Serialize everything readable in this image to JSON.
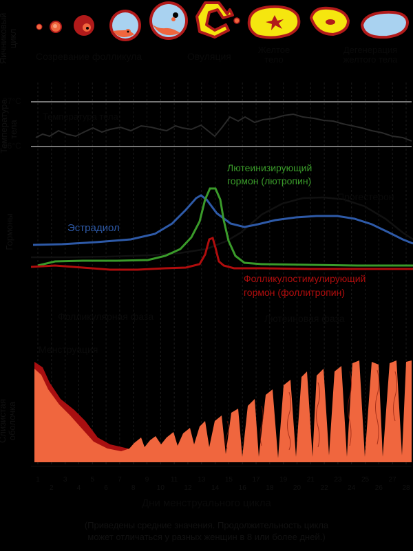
{
  "row_labels": {
    "ovary": "Яичниковый цикл",
    "temperature": "Температура тела",
    "hormones": "Гормоны",
    "endometrium": "Слизистая оболочка"
  },
  "ovary_stages": {
    "maturation": "Созревание фолликула",
    "ovulation": "Овуляция",
    "corpus_luteum": "Желтое тело",
    "degeneration": "Дегенерация желтого тела"
  },
  "temperature_marks": {
    "upper": "37°C",
    "lower": "36°C"
  },
  "hormones": {
    "lh": "Лютеинизирующий гормон (лютропин)",
    "lh_line1": "Лютеинизирующий",
    "lh_line2": "гормон (лютропин)",
    "estradiol": "Эстрадиол",
    "progesterone": "Прогестерон",
    "fsh_line1": "Фолликулостимулирующий",
    "fsh_line2": "гормон (фоллитропин)"
  },
  "phases": {
    "follicular": "Фолликулярная фаза",
    "luteal": "Лютеиновая фаза",
    "menstruation": "Менструация"
  },
  "days": [
    "1",
    "2",
    "3",
    "4",
    "5",
    "6",
    "7",
    "8",
    "9",
    "10",
    "11",
    "12",
    "13",
    "14",
    "15",
    "16",
    "17",
    "18",
    "19",
    "20",
    "21",
    "22",
    "23",
    "24",
    "25",
    "26",
    "27",
    "28"
  ],
  "x_title": "Дни менструального цикла",
  "footnote_line1": "(Приведены средние значения. Продолжительность цикла",
  "footnote_line2": "может отличаться у разных женщин в 8 или более дней.)",
  "colors": {
    "background": "#000000",
    "estradiol": "#2e5aa8",
    "lh": "#3a9b2a",
    "fsh": "#b00d0d",
    "progesterone": "#111111",
    "endometrium": "#f0663e",
    "endometrium_dark": "#a80f10",
    "follicle_outer": "#b11a1a",
    "follicle_fluid": "#a9d2f0",
    "corpus_luteum": "#f5e60f"
  }
}
